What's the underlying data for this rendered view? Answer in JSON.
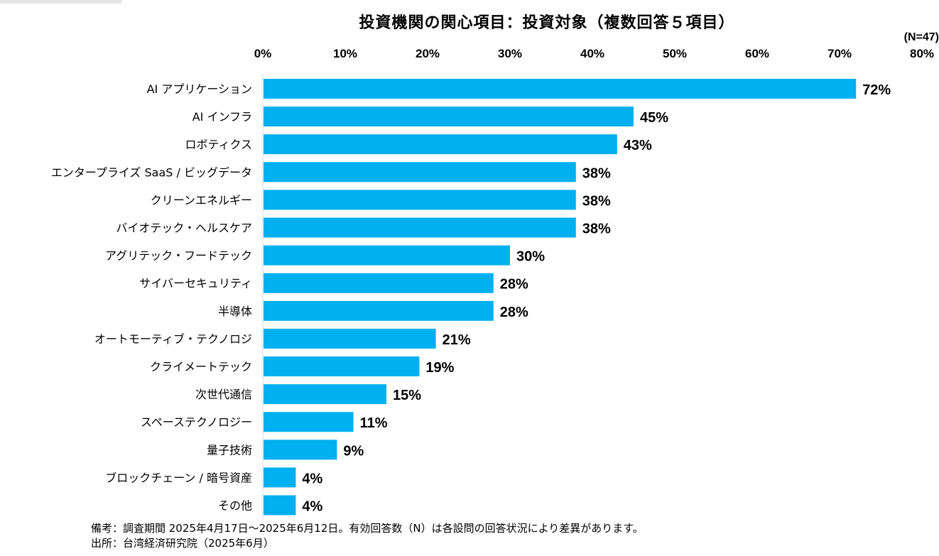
{
  "chart_data": {
    "type": "bar",
    "orientation": "horizontal",
    "title": "投資機関の関心項目：投資対象（複数回答５項目）",
    "sample_label": "(N=47)",
    "xlim": [
      0,
      80
    ],
    "ticks": [
      "0%",
      "10%",
      "20%",
      "30%",
      "40%",
      "50%",
      "60%",
      "70%",
      "80%"
    ],
    "tick_values": [
      0,
      10,
      20,
      30,
      40,
      50,
      60,
      70,
      80
    ],
    "categories": [
      "AI アプリケーション",
      "AI インフラ",
      "ロボティクス",
      "エンタープライズ SaaS / ビッグデータ",
      "クリーンエネルギー",
      "バイオテック・ヘルスケア",
      "アグリテック・フードテック",
      "サイバーセキュリティ",
      "半導体",
      "オートモーティブ・テクノロジ",
      "クライメートテック",
      "次世代通信",
      "スペーステクノロジー",
      "量子技術",
      "ブロックチェーン / 暗号資産",
      "その他"
    ],
    "values": [
      72,
      45,
      43,
      38,
      38,
      38,
      30,
      28,
      28,
      21,
      19,
      15,
      11,
      9,
      4,
      4
    ],
    "value_labels": [
      "72%",
      "45%",
      "43%",
      "38%",
      "38%",
      "38%",
      "30%",
      "28%",
      "28%",
      "21%",
      "19%",
      "15%",
      "11%",
      "9%",
      "4%",
      "4%"
    ],
    "bar_color": "#00b0f0",
    "axis_position": "top",
    "grid": false,
    "legend": "none"
  },
  "notes": {
    "remark": "備考：調査期間 2025年4月17日～2025年6月12日。有効回答数（N）は各設問の回答状況により差異があります。",
    "source": "出所：台湾経済研究院（2025年6月）"
  }
}
